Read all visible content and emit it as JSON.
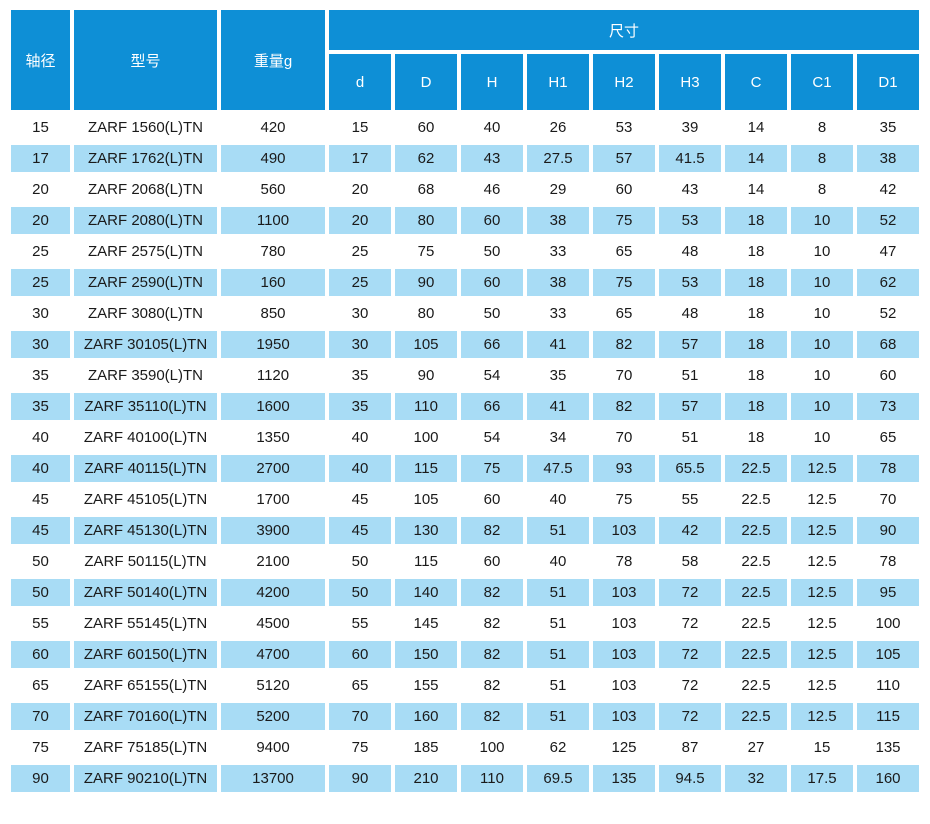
{
  "table": {
    "headers": {
      "shaft_diameter": "轴径",
      "model": "型号",
      "weight": "重量g",
      "dimensions_group": "尺寸",
      "dimension_cols": [
        "d",
        "D",
        "H",
        "H1",
        "H2",
        "H3",
        "C",
        "C1",
        "D1"
      ]
    },
    "column_keys": [
      "shaft-diameter",
      "model",
      "weight",
      "d",
      "D",
      "H",
      "H1",
      "H2",
      "H3",
      "C",
      "C1",
      "D1"
    ],
    "rows": [
      [
        "15",
        "ZARF 1560(L)TN",
        "420",
        "15",
        "60",
        "40",
        "26",
        "53",
        "39",
        "14",
        "8",
        "35"
      ],
      [
        "17",
        "ZARF 1762(L)TN",
        "490",
        "17",
        "62",
        "43",
        "27.5",
        "57",
        "41.5",
        "14",
        "8",
        "38"
      ],
      [
        "20",
        "ZARF 2068(L)TN",
        "560",
        "20",
        "68",
        "46",
        "29",
        "60",
        "43",
        "14",
        "8",
        "42"
      ],
      [
        "20",
        "ZARF 2080(L)TN",
        "1100",
        "20",
        "80",
        "60",
        "38",
        "75",
        "53",
        "18",
        "10",
        "52"
      ],
      [
        "25",
        "ZARF 2575(L)TN",
        "780",
        "25",
        "75",
        "50",
        "33",
        "65",
        "48",
        "18",
        "10",
        "47"
      ],
      [
        "25",
        "ZARF 2590(L)TN",
        "160",
        "25",
        "90",
        "60",
        "38",
        "75",
        "53",
        "18",
        "10",
        "62"
      ],
      [
        "30",
        "ZARF 3080(L)TN",
        "850",
        "30",
        "80",
        "50",
        "33",
        "65",
        "48",
        "18",
        "10",
        "52"
      ],
      [
        "30",
        "ZARF 30105(L)TN",
        "1950",
        "30",
        "105",
        "66",
        "41",
        "82",
        "57",
        "18",
        "10",
        "68"
      ],
      [
        "35",
        "ZARF 3590(L)TN",
        "1120",
        "35",
        "90",
        "54",
        "35",
        "70",
        "51",
        "18",
        "10",
        "60"
      ],
      [
        "35",
        "ZARF 35110(L)TN",
        "1600",
        "35",
        "110",
        "66",
        "41",
        "82",
        "57",
        "18",
        "10",
        "73"
      ],
      [
        "40",
        "ZARF 40100(L)TN",
        "1350",
        "40",
        "100",
        "54",
        "34",
        "70",
        "51",
        "18",
        "10",
        "65"
      ],
      [
        "40",
        "ZARF 40115(L)TN",
        "2700",
        "40",
        "115",
        "75",
        "47.5",
        "93",
        "65.5",
        "22.5",
        "12.5",
        "78"
      ],
      [
        "45",
        "ZARF 45105(L)TN",
        "1700",
        "45",
        "105",
        "60",
        "40",
        "75",
        "55",
        "22.5",
        "12.5",
        "70"
      ],
      [
        "45",
        "ZARF 45130(L)TN",
        "3900",
        "45",
        "130",
        "82",
        "51",
        "103",
        "42",
        "22.5",
        "12.5",
        "90"
      ],
      [
        "50",
        "ZARF 50115(L)TN",
        "2100",
        "50",
        "115",
        "60",
        "40",
        "78",
        "58",
        "22.5",
        "12.5",
        "78"
      ],
      [
        "50",
        "ZARF 50140(L)TN",
        "4200",
        "50",
        "140",
        "82",
        "51",
        "103",
        "72",
        "22.5",
        "12.5",
        "95"
      ],
      [
        "55",
        "ZARF 55145(L)TN",
        "4500",
        "55",
        "145",
        "82",
        "51",
        "103",
        "72",
        "22.5",
        "12.5",
        "100"
      ],
      [
        "60",
        "ZARF 60150(L)TN",
        "4700",
        "60",
        "150",
        "82",
        "51",
        "103",
        "72",
        "22.5",
        "12.5",
        "105"
      ],
      [
        "65",
        "ZARF 65155(L)TN",
        "5120",
        "65",
        "155",
        "82",
        "51",
        "103",
        "72",
        "22.5",
        "12.5",
        "110"
      ],
      [
        "70",
        "ZARF 70160(L)TN",
        "5200",
        "70",
        "160",
        "82",
        "51",
        "103",
        "72",
        "22.5",
        "12.5",
        "115"
      ],
      [
        "75",
        "ZARF 75185(L)TN",
        "9400",
        "75",
        "185",
        "100",
        "62",
        "125",
        "87",
        "27",
        "15",
        "135"
      ],
      [
        "90",
        "ZARF 90210(L)TN",
        "13700",
        "90",
        "210",
        "110",
        "69.5",
        "135",
        "94.5",
        "32",
        "17.5",
        "160"
      ]
    ],
    "colors": {
      "header_bg": "#0e8fd6",
      "header_text": "#ffffff",
      "row_alt_bg": "#a8dcf5",
      "row_bg": "#ffffff",
      "text": "#1a1a1a"
    }
  }
}
